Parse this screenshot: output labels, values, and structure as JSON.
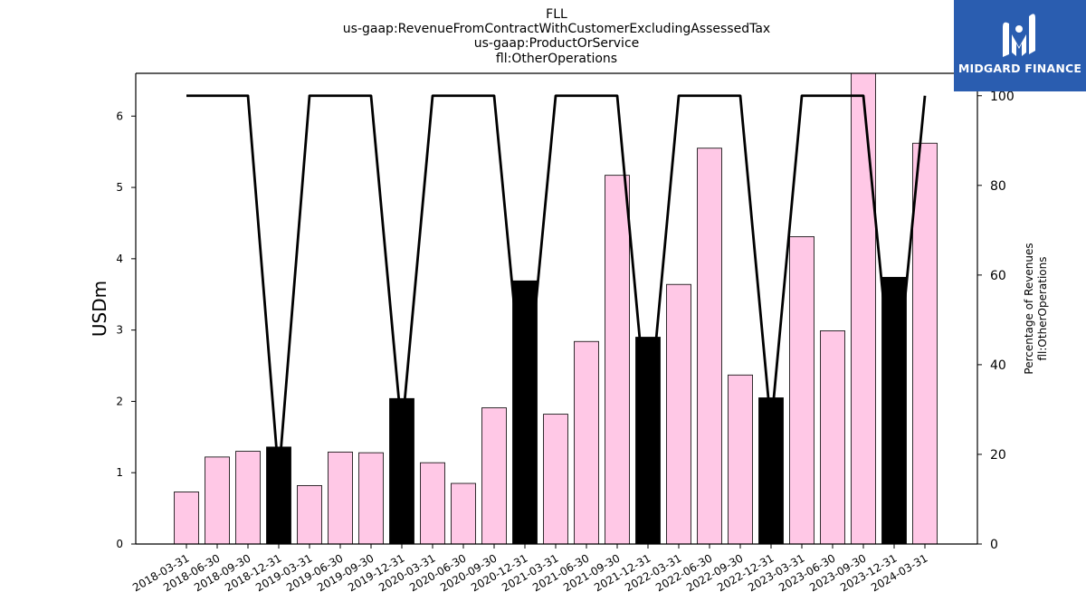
{
  "titles": [
    "FLL",
    "us-gaap:RevenueFromContractWithCustomerExcludingAssessedTax",
    "us-gaap:ProductOrService",
    "fll:OtherOperations"
  ],
  "logo": {
    "text": "MIDGARD FINANCE",
    "bg_color": "#2a5db0"
  },
  "chart_data": {
    "type": "bar",
    "ylabel": "USDm",
    "y2label_lines": [
      "Percentage of Revenues",
      "fll:OtherOperations"
    ],
    "ylim": [
      0,
      6.6
    ],
    "y2lim": [
      0,
      105
    ],
    "yticks": [
      0,
      1,
      2,
      3,
      4,
      5,
      6
    ],
    "y2ticks": [
      0,
      20,
      40,
      60,
      80,
      100
    ],
    "categories": [
      "2018-03-31",
      "2018-06-30",
      "2018-09-30",
      "2018-12-31",
      "2019-03-31",
      "2019-06-30",
      "2019-09-30",
      "2019-12-31",
      "2020-03-31",
      "2020-06-30",
      "2020-09-30",
      "2020-12-31",
      "2021-03-31",
      "2021-06-30",
      "2021-09-30",
      "2021-12-31",
      "2022-03-31",
      "2022-06-30",
      "2022-09-30",
      "2022-12-31",
      "2023-03-31",
      "2023-06-30",
      "2023-09-30",
      "2023-12-31",
      "2024-03-31"
    ],
    "values": [
      0.73,
      1.22,
      1.3,
      1.36,
      0.82,
      1.29,
      1.28,
      2.04,
      1.14,
      0.85,
      1.91,
      3.69,
      1.82,
      2.84,
      5.17,
      2.9,
      3.64,
      5.55,
      2.37,
      2.05,
      4.31,
      2.99,
      6.62,
      3.74,
      5.62
    ],
    "bar_colors": [
      "#ffc8e6",
      "#ffc8e6",
      "#ffc8e6",
      "#000000",
      "#ffc8e6",
      "#ffc8e6",
      "#ffc8e6",
      "#000000",
      "#ffc8e6",
      "#ffc8e6",
      "#ffc8e6",
      "#000000",
      "#ffc8e6",
      "#ffc8e6",
      "#ffc8e6",
      "#000000",
      "#ffc8e6",
      "#ffc8e6",
      "#ffc8e6",
      "#000000",
      "#ffc8e6",
      "#ffc8e6",
      "#ffc8e6",
      "#000000",
      "#ffc8e6"
    ],
    "line_values": [
      100,
      100,
      100,
      15,
      100,
      100,
      100,
      25,
      100,
      100,
      100,
      28,
      100,
      100,
      100,
      26,
      100,
      100,
      100,
      26,
      100,
      100,
      100,
      30,
      100
    ],
    "line_color": "#000000"
  }
}
